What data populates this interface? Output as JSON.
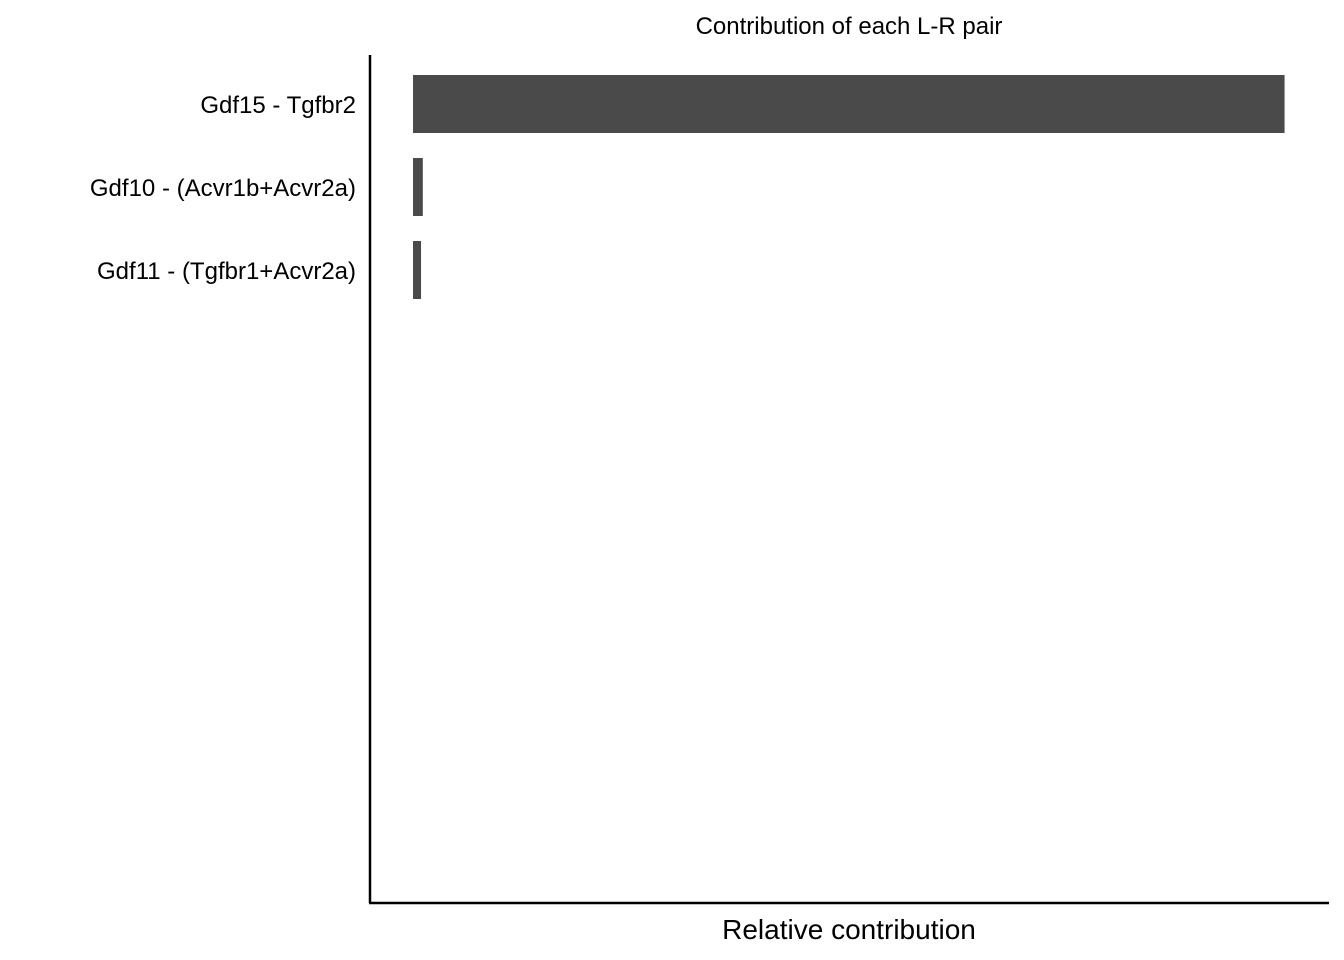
{
  "chart_data": {
    "type": "bar",
    "orientation": "horizontal",
    "title": "Contribution of each L-R pair",
    "xlabel": "Relative contribution",
    "ylabel": "",
    "categories": [
      "Gdf15  - Tgfbr2",
      "Gdf10  - (Acvr1b+Acvr2a)",
      "Gdf11  - (Tgfbr1+Acvr2a)"
    ],
    "values": [
      0.976,
      0.011,
      0.009
    ],
    "xlim": [
      0,
      1
    ],
    "grid": false,
    "legend": "none",
    "bar_color": "#4a4a4a",
    "axis_color": "#000000"
  }
}
